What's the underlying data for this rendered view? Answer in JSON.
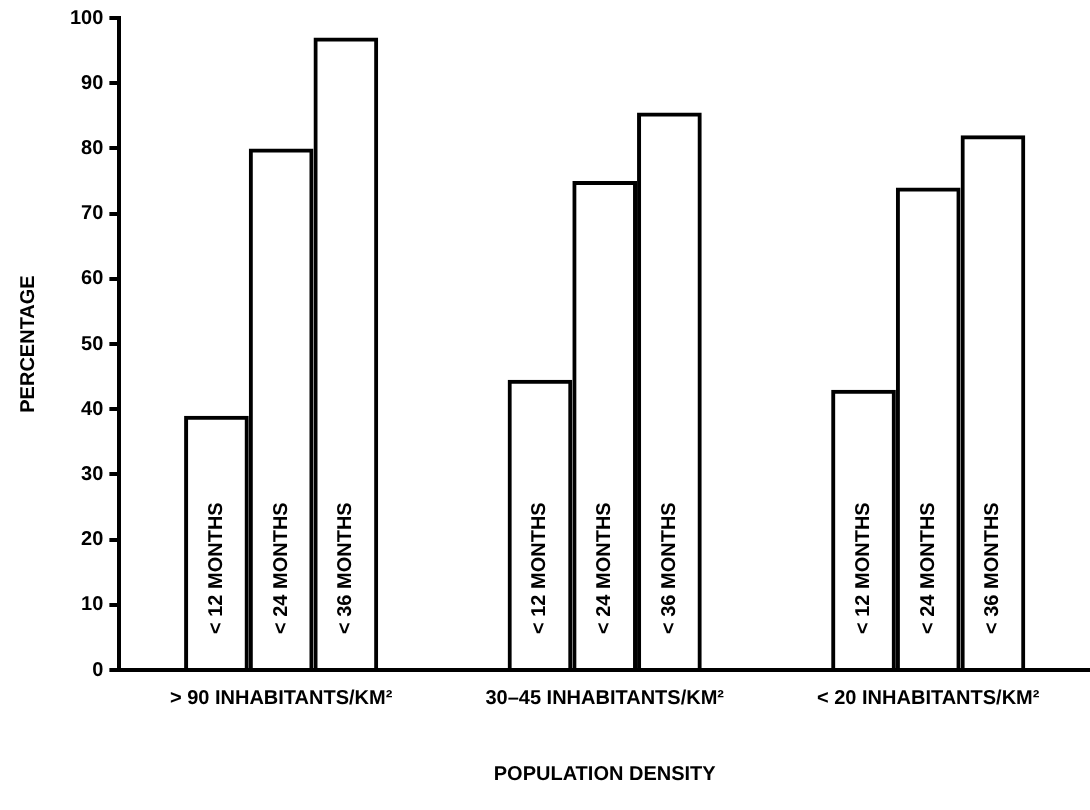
{
  "chart_data": {
    "type": "bar",
    "xlabel": "POPULATION DENSITY",
    "ylabel": "PERCENTAGE",
    "categories": [
      "> 90 INHABITANTS/KM²",
      "30–45 INHABITANTS/KM²",
      "< 20 INHABITANTS/KM²"
    ],
    "series": [
      {
        "name": "< 12 MONTHS",
        "color": "#000000",
        "values": [
          39,
          44.5,
          43
        ]
      },
      {
        "name": "< 24 MONTHS",
        "color": "#000000",
        "values": [
          80,
          75,
          74
        ]
      },
      {
        "name": "< 36 MONTHS",
        "color": "#000000",
        "values": [
          97,
          85.5,
          82
        ]
      }
    ],
    "ylim": [
      0,
      100
    ],
    "yticks": [
      0,
      10,
      20,
      30,
      40,
      50,
      60,
      70,
      80,
      90,
      100
    ],
    "grid": false,
    "legend": false
  }
}
